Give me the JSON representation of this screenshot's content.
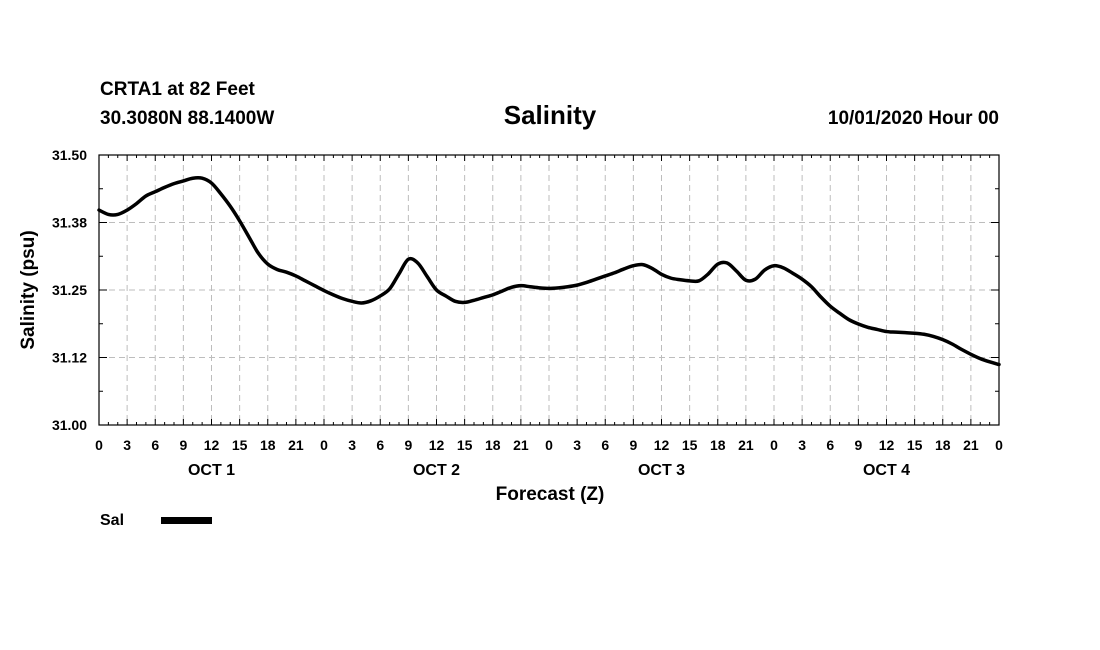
{
  "header": {
    "station": "CRTA1 at 82 Feet",
    "location": "30.3080N 88.1400W",
    "title": "Salinity",
    "datetime": "10/01/2020 Hour 00"
  },
  "chart_data": {
    "type": "line",
    "title": "Salinity",
    "xlabel": "Forecast (Z)",
    "ylabel": "Salinity (psu)",
    "ylim": [
      31.0,
      31.5
    ],
    "xlim": [
      0,
      96
    ],
    "yticks": [
      31.0,
      31.125,
      31.25,
      31.375,
      31.5
    ],
    "ytick_labels": [
      "31.00",
      "31.12",
      "31.25",
      "31.38",
      "31.50"
    ],
    "xtick_labels": [
      "0",
      "3",
      "6",
      "9",
      "12",
      "15",
      "18",
      "21",
      "0",
      "3",
      "6",
      "9",
      "12",
      "15",
      "18",
      "21",
      "0",
      "3",
      "6",
      "9",
      "12",
      "15",
      "18",
      "21",
      "0",
      "3",
      "6",
      "9",
      "12",
      "15",
      "18",
      "21",
      "0"
    ],
    "day_labels": [
      {
        "label": "OCT 1",
        "hour": 12
      },
      {
        "label": "OCT 2",
        "hour": 36
      },
      {
        "label": "OCT 3",
        "hour": 60
      },
      {
        "label": "OCT 4",
        "hour": 84
      }
    ],
    "grid": true,
    "legend": "bottom-left",
    "series": [
      {
        "name": "Sal",
        "color": "#000000",
        "x": [
          0,
          1,
          2,
          3,
          4,
          5,
          6,
          7,
          8,
          9,
          10,
          11,
          12,
          13,
          14,
          15,
          16,
          17,
          18,
          19,
          20,
          21,
          22,
          23,
          24,
          25,
          26,
          27,
          28,
          29,
          30,
          31,
          32,
          33,
          34,
          35,
          36,
          37,
          38,
          39,
          40,
          41,
          42,
          43,
          44,
          45,
          46,
          47,
          48,
          49,
          50,
          51,
          52,
          53,
          54,
          55,
          56,
          57,
          58,
          59,
          60,
          61,
          62,
          63,
          64,
          65,
          66,
          67,
          68,
          69,
          70,
          71,
          72,
          73,
          74,
          75,
          76,
          77,
          78,
          79,
          80,
          81,
          82,
          83,
          84,
          85,
          86,
          87,
          88,
          89,
          90,
          91,
          92,
          93,
          94,
          95,
          96
        ],
        "values": [
          31.398,
          31.39,
          31.39,
          31.398,
          31.41,
          31.424,
          31.432,
          31.44,
          31.447,
          31.452,
          31.457,
          31.457,
          31.448,
          31.428,
          31.405,
          31.378,
          31.348,
          31.318,
          31.298,
          31.288,
          31.283,
          31.276,
          31.267,
          31.258,
          31.249,
          31.241,
          31.234,
          31.229,
          31.226,
          31.23,
          31.239,
          31.252,
          31.28,
          31.307,
          31.3,
          31.275,
          31.25,
          31.239,
          31.229,
          31.227,
          31.231,
          31.236,
          31.241,
          31.248,
          31.255,
          31.258,
          31.256,
          31.254,
          31.253,
          31.254,
          31.256,
          31.259,
          31.264,
          31.27,
          31.276,
          31.282,
          31.289,
          31.295,
          31.297,
          31.29,
          31.279,
          31.272,
          31.269,
          31.267,
          31.267,
          31.28,
          31.298,
          31.3,
          31.285,
          31.268,
          31.27,
          31.287,
          31.295,
          31.291,
          31.281,
          31.27,
          31.256,
          31.237,
          31.22,
          31.207,
          31.195,
          31.187,
          31.181,
          31.177,
          31.173,
          31.172,
          31.171,
          31.17,
          31.168,
          31.164,
          31.158,
          31.15,
          31.14,
          31.131,
          31.123,
          31.117,
          31.112
        ]
      }
    ]
  }
}
